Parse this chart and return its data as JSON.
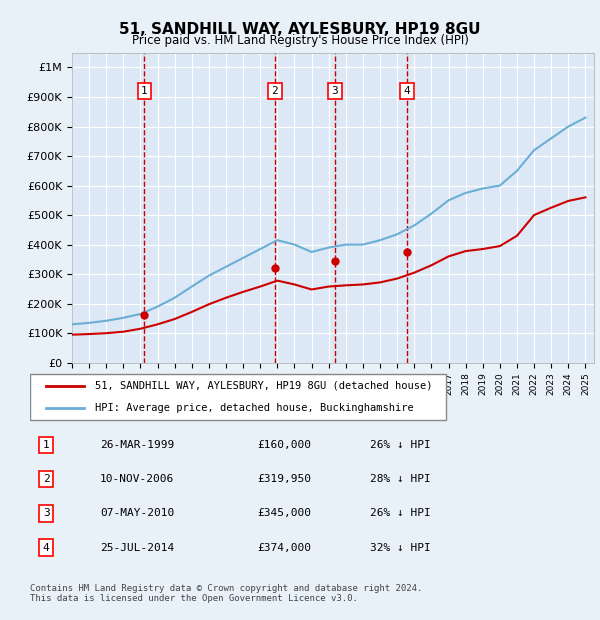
{
  "title": "51, SANDHILL WAY, AYLESBURY, HP19 8GU",
  "subtitle": "Price paid vs. HM Land Registry's House Price Index (HPI)",
  "footer": "Contains HM Land Registry data © Crown copyright and database right 2024.\nThis data is licensed under the Open Government Licence v3.0.",
  "legend_line1": "51, SANDHILL WAY, AYLESBURY, HP19 8GU (detached house)",
  "legend_line2": "HPI: Average price, detached house, Buckinghamshire",
  "transactions": [
    {
      "num": 1,
      "date": "26-MAR-1999",
      "price": 160000,
      "pct": "26%",
      "year": 1999.23
    },
    {
      "num": 2,
      "date": "10-NOV-2006",
      "price": 319950,
      "pct": "28%",
      "year": 2006.86
    },
    {
      "num": 3,
      "date": "07-MAY-2010",
      "price": 345000,
      "pct": "26%",
      "year": 2010.37
    },
    {
      "num": 4,
      "date": "25-JUL-2014",
      "price": 374000,
      "pct": "32%",
      "year": 2014.57
    }
  ],
  "hpi_color": "#6baed6",
  "price_color": "#cc0000",
  "transaction_marker_color": "#cc0000",
  "dashed_line_color": "#cc0000",
  "background_color": "#e8f0f8",
  "plot_bg_color": "#dce8f5",
  "ylim": [
    0,
    1050000
  ],
  "yticks": [
    0,
    100000,
    200000,
    300000,
    400000,
    500000,
    600000,
    700000,
    800000,
    900000,
    1000000
  ],
  "xlim_start": 1995.0,
  "xlim_end": 2025.5,
  "hpi_years": [
    1995,
    1996,
    1997,
    1998,
    1999,
    2000,
    2001,
    2002,
    2003,
    2004,
    2005,
    2006,
    2007,
    2008,
    2009,
    2010,
    2011,
    2012,
    2013,
    2014,
    2015,
    2016,
    2017,
    2018,
    2019,
    2020,
    2021,
    2022,
    2023,
    2024,
    2025
  ],
  "hpi_values": [
    130000,
    135000,
    142000,
    152000,
    165000,
    190000,
    220000,
    258000,
    295000,
    325000,
    355000,
    385000,
    415000,
    400000,
    375000,
    390000,
    400000,
    400000,
    415000,
    435000,
    465000,
    505000,
    550000,
    575000,
    590000,
    600000,
    650000,
    720000,
    760000,
    800000,
    830000
  ],
  "price_years": [
    1995,
    1996,
    1997,
    1998,
    1999,
    2000,
    2001,
    2002,
    2003,
    2004,
    2005,
    2006,
    2007,
    2008,
    2009,
    2010,
    2011,
    2012,
    2013,
    2014,
    2015,
    2016,
    2017,
    2018,
    2019,
    2020,
    2021,
    2022,
    2023,
    2024,
    2025
  ],
  "price_values": [
    95000,
    97000,
    100000,
    105000,
    115000,
    130000,
    148000,
    172000,
    198000,
    220000,
    240000,
    258000,
    278000,
    265000,
    248000,
    258000,
    262000,
    265000,
    272000,
    285000,
    305000,
    330000,
    360000,
    378000,
    385000,
    395000,
    430000,
    500000,
    525000,
    548000,
    560000
  ]
}
